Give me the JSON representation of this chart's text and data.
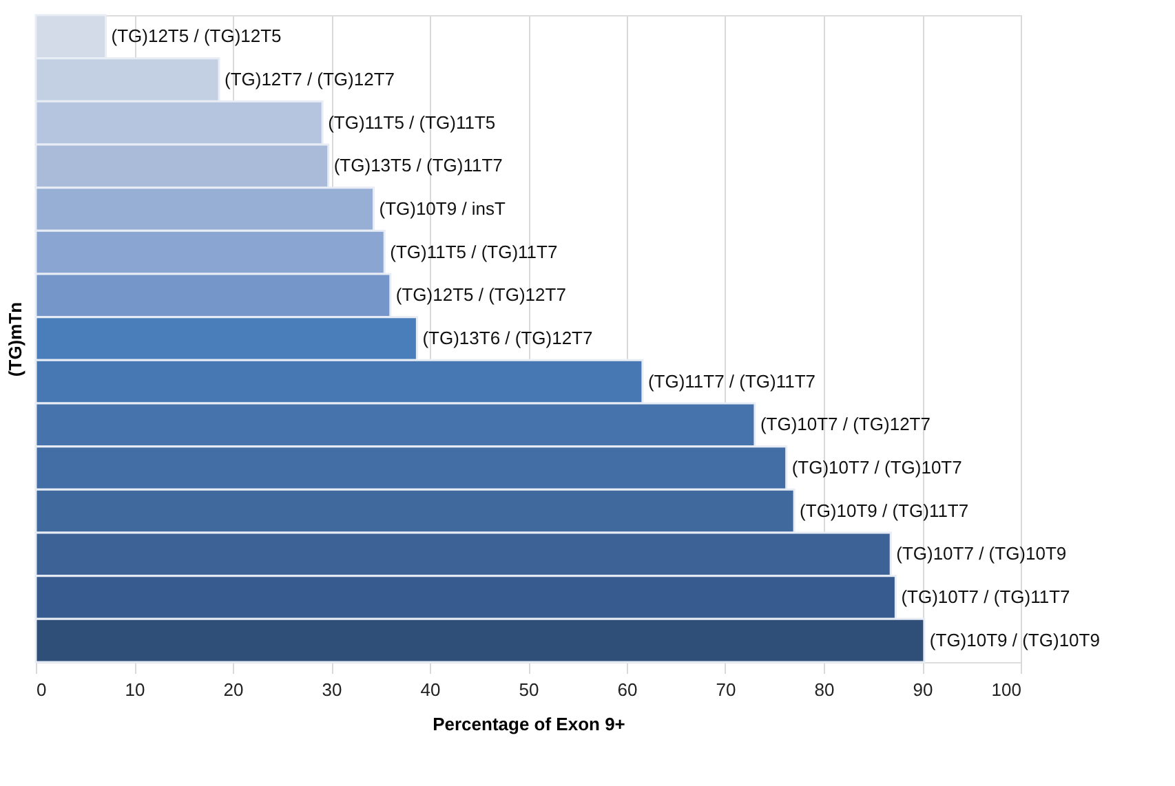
{
  "chart_data": {
    "type": "bar",
    "orientation": "horizontal",
    "xlabel": "Percentage of Exon 9+",
    "ylabel": "(TG)mTn",
    "categories": [
      "(TG)12T5 / (TG)12T5",
      "(TG)12T7 / (TG)12T7",
      "(TG)11T5 / (TG)11T5",
      "(TG)13T5 / (TG)11T7",
      "(TG)10T9 / insT",
      "(TG)11T5 / (TG)11T7",
      "(TG)12T5 / (TG)12T7",
      "(TG)13T6 / (TG)12T7",
      "(TG)11T7 / (TG)11T7",
      "(TG)10T7 / (TG)12T7",
      "(TG)10T7 / (TG)10T7",
      "(TG)10T9 / (TG)11T7",
      "(TG)10T7 / (TG)10T9",
      "(TG)10T7 / (TG)11T7",
      "(TG)10T9 / (TG)10T9"
    ],
    "values": [
      7.1,
      18.6,
      29.1,
      29.7,
      34.3,
      35.4,
      36.0,
      38.7,
      61.6,
      73.0,
      76.2,
      77.0,
      86.8,
      87.3,
      90.2
    ],
    "colors": [
      "#d3dbe9",
      "#c3cfe2",
      "#b5c4df",
      "#aabbd9",
      "#98afd5",
      "#8aa5d1",
      "#7596c8",
      "#4a7ebb",
      "#4878b3",
      "#4673ac",
      "#436ea5",
      "#40699e",
      "#3c6296",
      "#375b8e",
      "#2f4f79"
    ],
    "xlim": [
      0,
      100
    ],
    "xticks": [
      0,
      10,
      20,
      30,
      40,
      50,
      60,
      70,
      80,
      90,
      100
    ],
    "grid": "x",
    "tick_labels": "x"
  }
}
